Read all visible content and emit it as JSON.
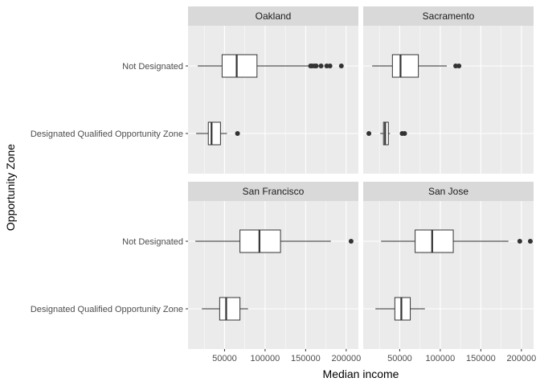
{
  "chart_data": {
    "type": "boxplot",
    "xlabel": "Median income",
    "ylabel": "Opportunity Zone",
    "x_ticks": [
      50000,
      100000,
      150000,
      200000
    ],
    "x_tick_labels": [
      "50000",
      "100000",
      "150000",
      "200000"
    ],
    "xlim": [
      5000,
      215000
    ],
    "categories": [
      "Not Designated",
      "Designated Qualified Opportunity Zone"
    ],
    "colors": {
      "panel_bg": "#ebebeb",
      "grid_major": "#ffffff",
      "strip_bg": "#d9d9d9",
      "box_fill": "#ffffff",
      "box_stroke": "#333333",
      "outlier": "#333333"
    },
    "panels": [
      {
        "title": "Oakland",
        "boxes": [
          {
            "category": "Not Designated",
            "whisker_low": 17000,
            "q1": 47000,
            "median": 65000,
            "q3": 90000,
            "whisker_high": 153000,
            "outliers": [
              156000,
              158000,
              161000,
              163000,
              169000,
              176000,
              180000,
              194000
            ]
          },
          {
            "category": "Designated Qualified Opportunity Zone",
            "whisker_low": 15000,
            "q1": 30000,
            "median": 34000,
            "q3": 45000,
            "whisker_high": 53000,
            "outliers": [
              66000
            ]
          }
        ]
      },
      {
        "title": "Sacramento",
        "boxes": [
          {
            "category": "Not Designated",
            "whisker_low": 16000,
            "q1": 41000,
            "median": 51000,
            "q3": 73000,
            "whisker_high": 108000,
            "outliers": [
              119000,
              123000
            ]
          },
          {
            "category": "Designated Qualified Opportunity Zone",
            "whisker_low": 26000,
            "q1": 30000,
            "median": 32000,
            "q3": 36000,
            "whisker_high": 38000,
            "outliers": [
              12000,
              53000,
              56000
            ]
          }
        ]
      },
      {
        "title": "San Francisco",
        "boxes": [
          {
            "category": "Not Designated",
            "whisker_low": 14000,
            "q1": 69000,
            "median": 93000,
            "q3": 119000,
            "whisker_high": 181000,
            "outliers": [
              206000
            ]
          },
          {
            "category": "Designated Qualified Opportunity Zone",
            "whisker_low": 22000,
            "q1": 44000,
            "median": 52000,
            "q3": 69000,
            "whisker_high": 79000,
            "outliers": []
          }
        ]
      },
      {
        "title": "San Jose",
        "boxes": [
          {
            "category": "Not Designated",
            "whisker_low": 27000,
            "q1": 69000,
            "median": 90000,
            "q3": 116000,
            "whisker_high": 184000,
            "outliers": [
              198000,
              211000
            ]
          },
          {
            "category": "Designated Qualified Opportunity Zone",
            "whisker_low": 20000,
            "q1": 44000,
            "median": 52000,
            "q3": 63000,
            "whisker_high": 81000,
            "outliers": []
          }
        ]
      }
    ]
  }
}
